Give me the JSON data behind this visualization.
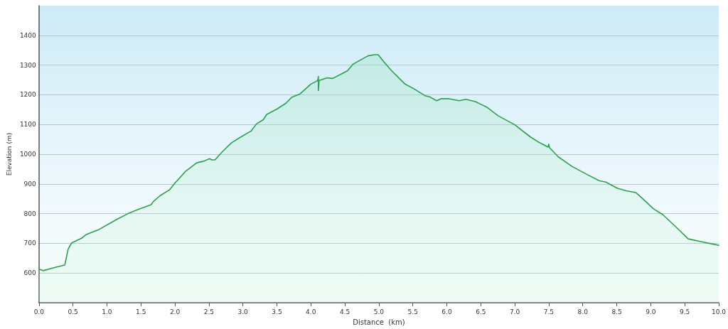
{
  "chart_data": {
    "type": "area",
    "xlabel": "Distance  (km)",
    "ylabel": "Elevation (m)",
    "series": [
      {
        "color": "#2e9e4f",
        "x": [
          0,
          0.06,
          0.26,
          0.38,
          0.4,
          0.43,
          0.48,
          0.64,
          0.69,
          0.87,
          1.14,
          1.31,
          1.48,
          1.65,
          1.68,
          1.78,
          1.92,
          1.99,
          2.16,
          2.32,
          2.43,
          2.51,
          2.54,
          2.59,
          2.7,
          2.83,
          2.97,
          3.12,
          3.2,
          3.3,
          3.35,
          3.5,
          3.63,
          3.72,
          3.84,
          4.0,
          4.1,
          4.11,
          4.11,
          4.12,
          4.24,
          4.32,
          4.44,
          4.54,
          4.62,
          4.72,
          4.84,
          4.93,
          4.99,
          5.08,
          5.18,
          5.38,
          5.51,
          5.68,
          5.75,
          5.85,
          5.92,
          6.02,
          6.18,
          6.28,
          6.42,
          6.52,
          6.59,
          6.75,
          7.0,
          7.23,
          7.34,
          7.49,
          7.5,
          7.51,
          7.64,
          7.84,
          8.07,
          8.24,
          8.34,
          8.51,
          8.64,
          8.78,
          8.91,
          9.04,
          9.18,
          9.38,
          9.55,
          9.75,
          9.92,
          10.0
        ],
        "values": [
          613,
          608,
          620,
          627,
          649,
          681,
          701,
          719,
          729,
          745,
          780,
          800,
          816,
          830,
          840,
          860,
          880,
          900,
          943,
          971,
          977,
          985,
          981,
          981,
          1009,
          1038,
          1058,
          1078,
          1102,
          1116,
          1134,
          1152,
          1171,
          1192,
          1203,
          1236,
          1248,
          1262,
          1214,
          1248,
          1257,
          1255,
          1269,
          1281,
          1303,
          1316,
          1331,
          1335,
          1335,
          1309,
          1283,
          1237,
          1221,
          1197,
          1193,
          1180,
          1187,
          1187,
          1180,
          1185,
          1177,
          1166,
          1158,
          1130,
          1099,
          1058,
          1042,
          1024,
          1034,
          1022,
          991,
          959,
          931,
          911,
          906,
          885,
          877,
          871,
          844,
          816,
          796,
          753,
          715,
          705,
          697,
          693
        ]
      }
    ],
    "xlim": [
      0,
      10.0
    ],
    "xticks": [
      {
        "value": 0,
        "label": "0.0"
      },
      0.5,
      {
        "value": 1,
        "label": "1.0"
      },
      1.5,
      {
        "value": 2,
        "label": "2.0"
      },
      2.5,
      {
        "value": 3,
        "label": "3.0"
      },
      3.5,
      {
        "value": 4,
        "label": "4.0"
      },
      4.5,
      {
        "value": 5,
        "label": "5.0"
      },
      5.5,
      {
        "value": 6,
        "label": "6.0"
      },
      6.5,
      {
        "value": 7,
        "label": "7.0"
      },
      7.5,
      {
        "value": 8,
        "label": "8.0"
      },
      8.5,
      {
        "value": 9,
        "label": "9.0"
      },
      9.5,
      {
        "value": 10,
        "label": "10.0"
      }
    ],
    "ylim": [
      500,
      1500
    ],
    "yticks": [
      600,
      700,
      800,
      900,
      1000,
      1100,
      1200,
      1300,
      1400
    ],
    "grid": "y",
    "marker": "none",
    "line_style": "solid"
  }
}
